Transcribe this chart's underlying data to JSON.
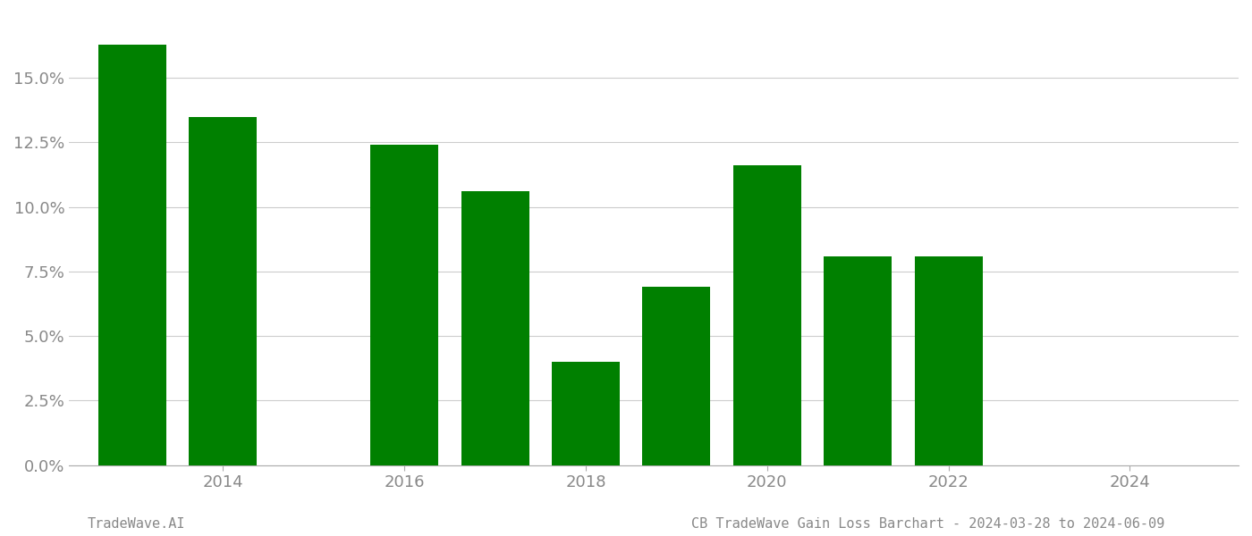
{
  "years": [
    2013,
    2014,
    2016,
    2017,
    2018,
    2019,
    2020,
    2021,
    2022,
    2023
  ],
  "values": [
    0.163,
    0.135,
    0.124,
    0.106,
    0.04,
    0.069,
    0.116,
    0.081,
    0.081,
    0.0
  ],
  "bar_color": "#008000",
  "background_color": "#ffffff",
  "grid_color": "#cccccc",
  "axis_color": "#aaaaaa",
  "tick_label_color": "#888888",
  "footer_left": "TradeWave.AI",
  "footer_right": "CB TradeWave Gain Loss Barchart - 2024-03-28 to 2024-06-09",
  "ylim": [
    0,
    0.175
  ],
  "yticks": [
    0.0,
    0.025,
    0.05,
    0.075,
    0.1,
    0.125,
    0.15
  ],
  "xlim": [
    2012.3,
    2025.2
  ],
  "xticks": [
    2014,
    2016,
    2018,
    2020,
    2022,
    2024
  ]
}
